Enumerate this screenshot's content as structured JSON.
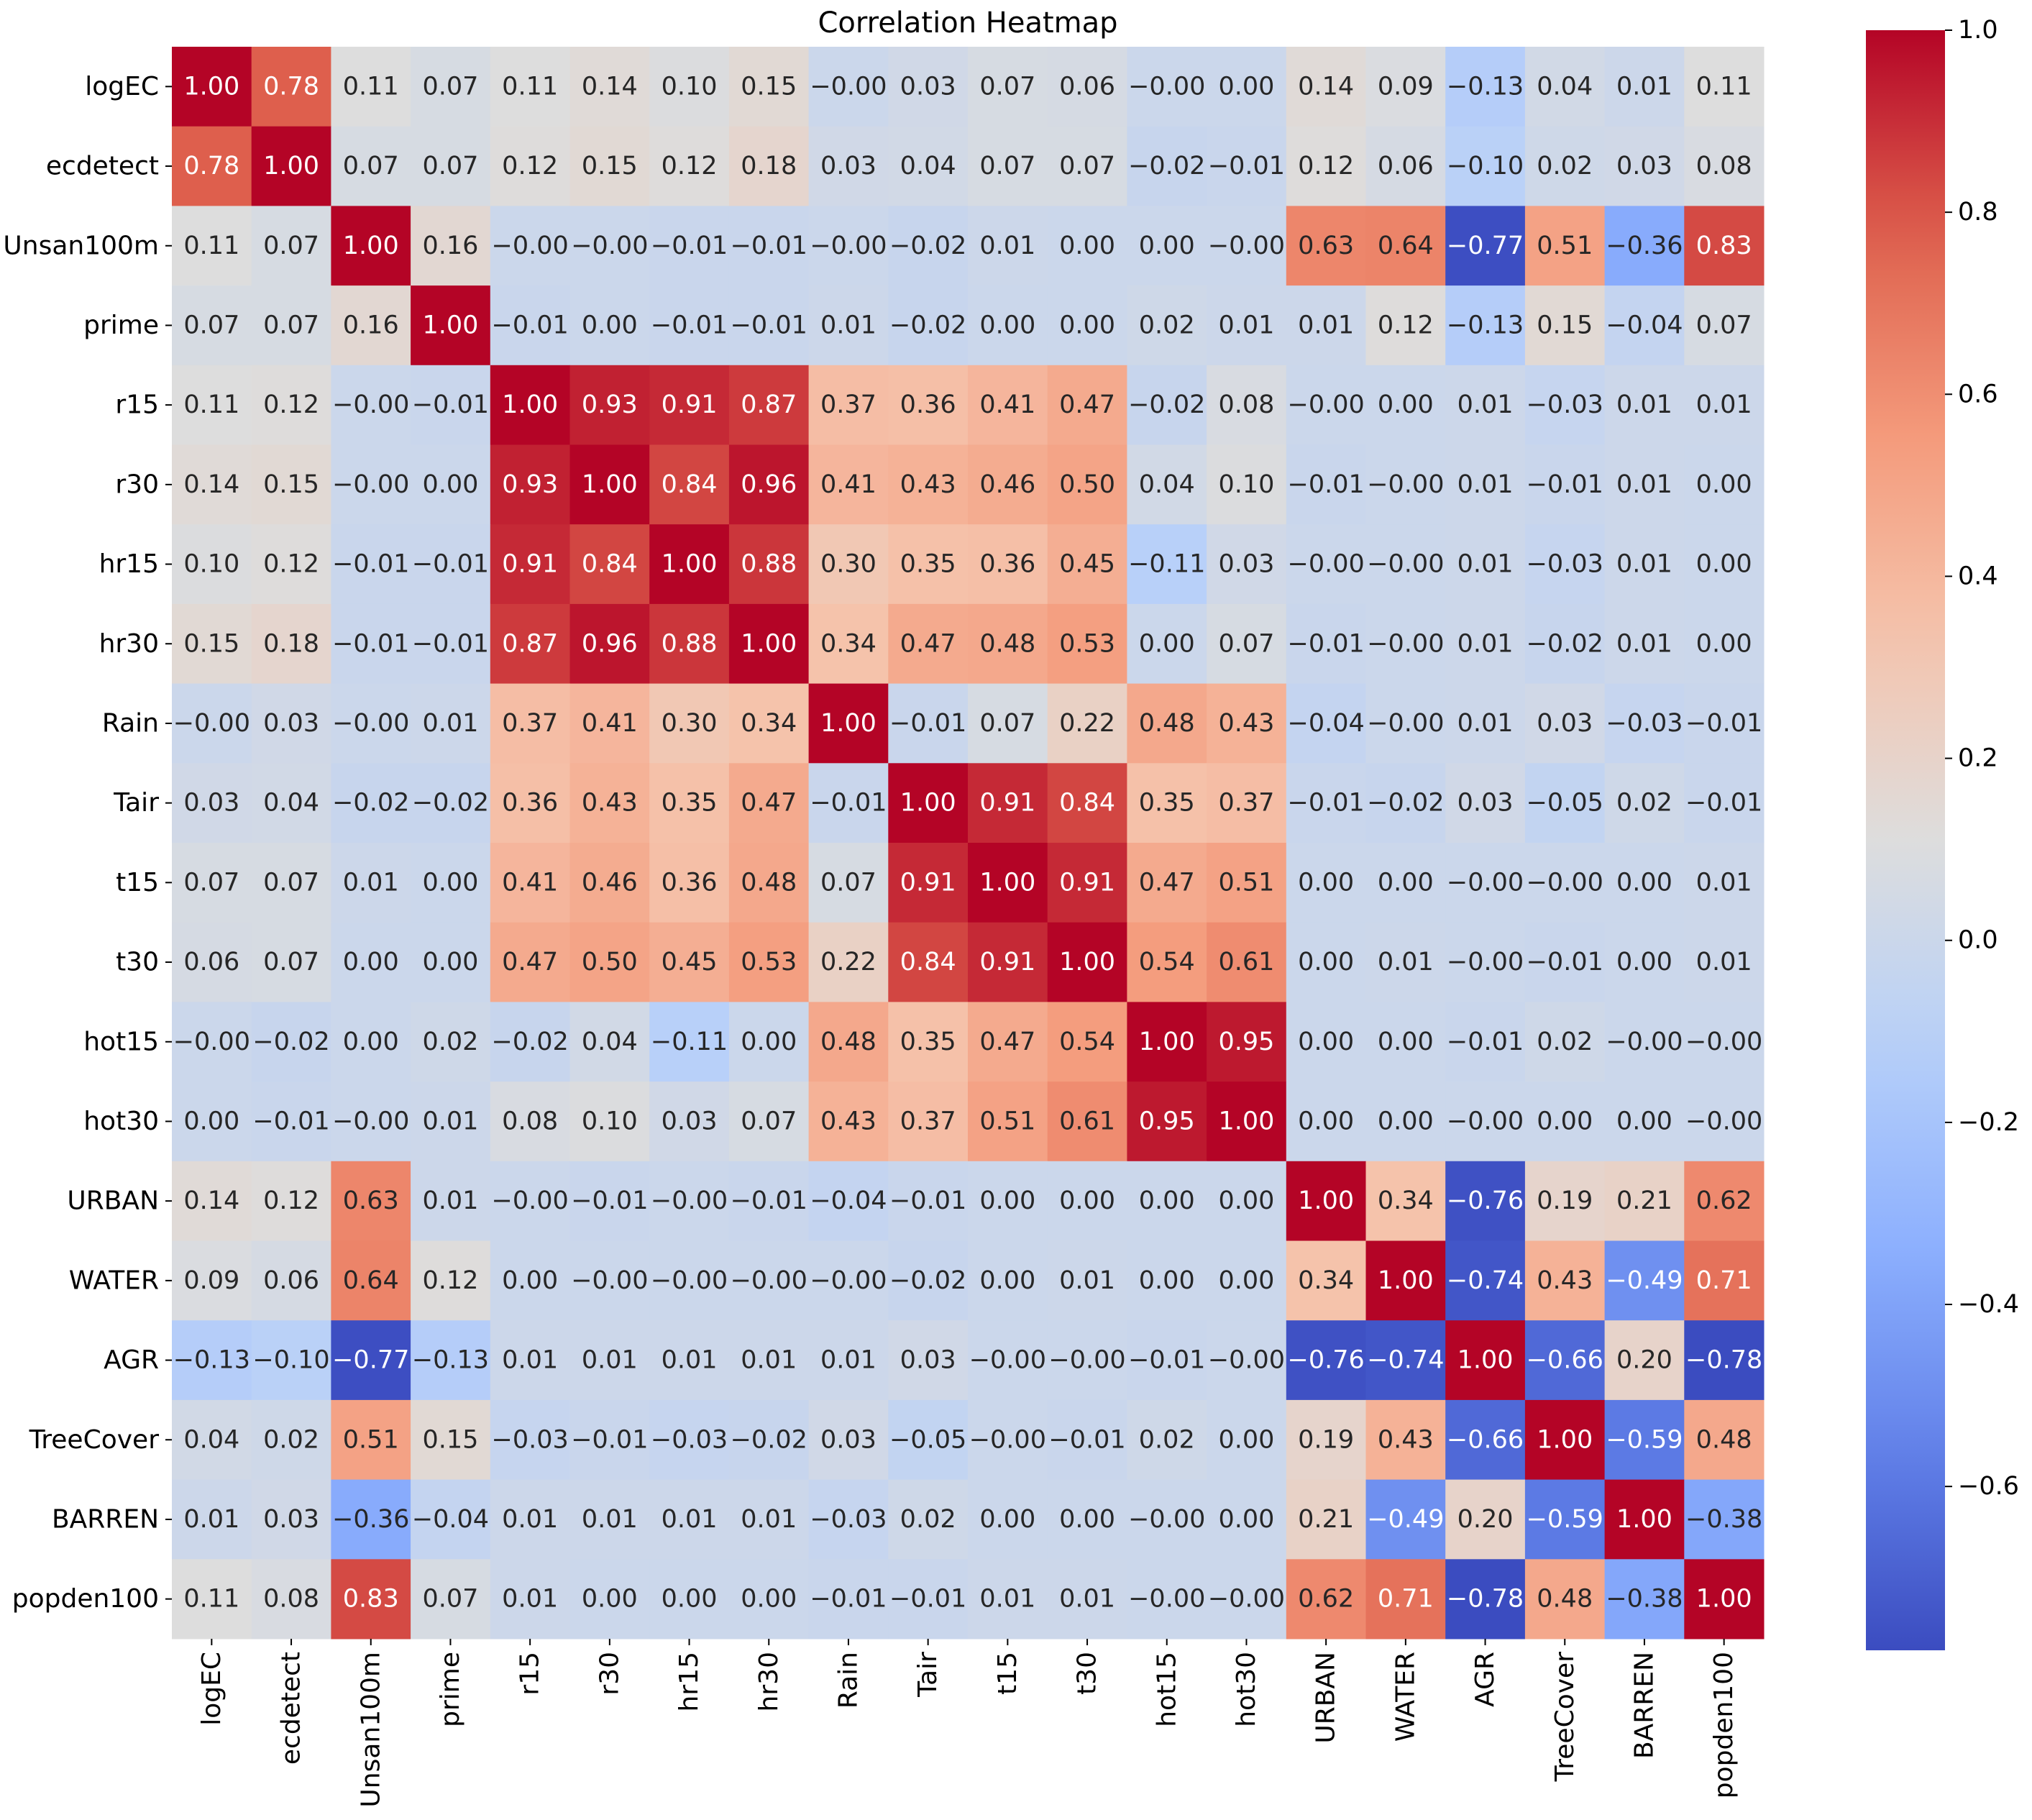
{
  "chart_data": {
    "type": "heatmap",
    "title": "Correlation Heatmap",
    "xlabel": "",
    "ylabel": "",
    "labels": [
      "logEC",
      "ecdetect",
      "Unsan100m",
      "prime",
      "r15",
      "r30",
      "hr15",
      "hr30",
      "Rain",
      "Tair",
      "t15",
      "t30",
      "hot15",
      "hot30",
      "URBAN",
      "WATER",
      "AGR",
      "TreeCover",
      "BARREN",
      "popden100"
    ],
    "matrix": [
      [
        "1.00",
        "0.78",
        "0.11",
        "0.07",
        "0.11",
        "0.14",
        "0.10",
        "0.15",
        "−0.00",
        "0.03",
        "0.07",
        "0.06",
        "−0.00",
        "0.00",
        "0.14",
        "0.09",
        "−0.13",
        "0.04",
        "0.01",
        "0.11"
      ],
      [
        "0.78",
        "1.00",
        "0.07",
        "0.07",
        "0.12",
        "0.15",
        "0.12",
        "0.18",
        "0.03",
        "0.04",
        "0.07",
        "0.07",
        "−0.02",
        "−0.01",
        "0.12",
        "0.06",
        "−0.10",
        "0.02",
        "0.03",
        "0.08"
      ],
      [
        "0.11",
        "0.07",
        "1.00",
        "0.16",
        "−0.00",
        "−0.00",
        "−0.01",
        "−0.01",
        "−0.00",
        "−0.02",
        "0.01",
        "0.00",
        "0.00",
        "−0.00",
        "0.63",
        "0.64",
        "−0.77",
        "0.51",
        "−0.36",
        "0.83"
      ],
      [
        "0.07",
        "0.07",
        "0.16",
        "1.00",
        "−0.01",
        "0.00",
        "−0.01",
        "−0.01",
        "0.01",
        "−0.02",
        "0.00",
        "0.00",
        "0.02",
        "0.01",
        "0.01",
        "0.12",
        "−0.13",
        "0.15",
        "−0.04",
        "0.07"
      ],
      [
        "0.11",
        "0.12",
        "−0.00",
        "−0.01",
        "1.00",
        "0.93",
        "0.91",
        "0.87",
        "0.37",
        "0.36",
        "0.41",
        "0.47",
        "−0.02",
        "0.08",
        "−0.00",
        "0.00",
        "0.01",
        "−0.03",
        "0.01",
        "0.01"
      ],
      [
        "0.14",
        "0.15",
        "−0.00",
        "0.00",
        "0.93",
        "1.00",
        "0.84",
        "0.96",
        "0.41",
        "0.43",
        "0.46",
        "0.50",
        "0.04",
        "0.10",
        "−0.01",
        "−0.00",
        "0.01",
        "−0.01",
        "0.01",
        "0.00"
      ],
      [
        "0.10",
        "0.12",
        "−0.01",
        "−0.01",
        "0.91",
        "0.84",
        "1.00",
        "0.88",
        "0.30",
        "0.35",
        "0.36",
        "0.45",
        "−0.11",
        "0.03",
        "−0.00",
        "−0.00",
        "0.01",
        "−0.03",
        "0.01",
        "0.00"
      ],
      [
        "0.15",
        "0.18",
        "−0.01",
        "−0.01",
        "0.87",
        "0.96",
        "0.88",
        "1.00",
        "0.34",
        "0.47",
        "0.48",
        "0.53",
        "0.00",
        "0.07",
        "−0.01",
        "−0.00",
        "0.01",
        "−0.02",
        "0.01",
        "0.00"
      ],
      [
        "−0.00",
        "0.03",
        "−0.00",
        "0.01",
        "0.37",
        "0.41",
        "0.30",
        "0.34",
        "1.00",
        "−0.01",
        "0.07",
        "0.22",
        "0.48",
        "0.43",
        "−0.04",
        "−0.00",
        "0.01",
        "0.03",
        "−0.03",
        "−0.01"
      ],
      [
        "0.03",
        "0.04",
        "−0.02",
        "−0.02",
        "0.36",
        "0.43",
        "0.35",
        "0.47",
        "−0.01",
        "1.00",
        "0.91",
        "0.84",
        "0.35",
        "0.37",
        "−0.01",
        "−0.02",
        "0.03",
        "−0.05",
        "0.02",
        "−0.01"
      ],
      [
        "0.07",
        "0.07",
        "0.01",
        "0.00",
        "0.41",
        "0.46",
        "0.36",
        "0.48",
        "0.07",
        "0.91",
        "1.00",
        "0.91",
        "0.47",
        "0.51",
        "0.00",
        "0.00",
        "−0.00",
        "−0.00",
        "0.00",
        "0.01"
      ],
      [
        "0.06",
        "0.07",
        "0.00",
        "0.00",
        "0.47",
        "0.50",
        "0.45",
        "0.53",
        "0.22",
        "0.84",
        "0.91",
        "1.00",
        "0.54",
        "0.61",
        "0.00",
        "0.01",
        "−0.00",
        "−0.01",
        "0.00",
        "0.01"
      ],
      [
        "−0.00",
        "−0.02",
        "0.00",
        "0.02",
        "−0.02",
        "0.04",
        "−0.11",
        "0.00",
        "0.48",
        "0.35",
        "0.47",
        "0.54",
        "1.00",
        "0.95",
        "0.00",
        "0.00",
        "−0.01",
        "0.02",
        "−0.00",
        "−0.00"
      ],
      [
        "0.00",
        "−0.01",
        "−0.00",
        "0.01",
        "0.08",
        "0.10",
        "0.03",
        "0.07",
        "0.43",
        "0.37",
        "0.51",
        "0.61",
        "0.95",
        "1.00",
        "0.00",
        "0.00",
        "−0.00",
        "0.00",
        "0.00",
        "−0.00"
      ],
      [
        "0.14",
        "0.12",
        "0.63",
        "0.01",
        "−0.00",
        "−0.01",
        "−0.00",
        "−0.01",
        "−0.04",
        "−0.01",
        "0.00",
        "0.00",
        "0.00",
        "0.00",
        "1.00",
        "0.34",
        "−0.76",
        "0.19",
        "0.21",
        "0.62"
      ],
      [
        "0.09",
        "0.06",
        "0.64",
        "0.12",
        "0.00",
        "−0.00",
        "−0.00",
        "−0.00",
        "−0.00",
        "−0.02",
        "0.00",
        "0.01",
        "0.00",
        "0.00",
        "0.34",
        "1.00",
        "−0.74",
        "0.43",
        "−0.49",
        "0.71"
      ],
      [
        "−0.13",
        "−0.10",
        "−0.77",
        "−0.13",
        "0.01",
        "0.01",
        "0.01",
        "0.01",
        "0.01",
        "0.03",
        "−0.00",
        "−0.00",
        "−0.01",
        "−0.00",
        "−0.76",
        "−0.74",
        "1.00",
        "−0.66",
        "0.20",
        "−0.78"
      ],
      [
        "0.04",
        "0.02",
        "0.51",
        "0.15",
        "−0.03",
        "−0.01",
        "−0.03",
        "−0.02",
        "0.03",
        "−0.05",
        "−0.00",
        "−0.01",
        "0.02",
        "0.00",
        "0.19",
        "0.43",
        "−0.66",
        "1.00",
        "−0.59",
        "0.48"
      ],
      [
        "0.01",
        "0.03",
        "−0.36",
        "−0.04",
        "0.01",
        "0.01",
        "0.01",
        "0.01",
        "−0.03",
        "0.02",
        "0.00",
        "0.00",
        "−0.00",
        "0.00",
        "0.21",
        "−0.49",
        "0.20",
        "−0.59",
        "1.00",
        "−0.38"
      ],
      [
        "0.11",
        "0.08",
        "0.83",
        "0.07",
        "0.01",
        "0.00",
        "0.00",
        "0.00",
        "−0.01",
        "−0.01",
        "0.01",
        "0.01",
        "−0.00",
        "−0.00",
        "0.62",
        "0.71",
        "−0.78",
        "0.48",
        "−0.38",
        "1.00"
      ]
    ],
    "colormap": "coolwarm",
    "vmin": -0.78,
    "vmax": 1.0,
    "colorbar_ticks": [
      1.0,
      0.8,
      0.6,
      0.4,
      0.2,
      0.0,
      -0.2,
      -0.4,
      -0.6
    ],
    "colorbar_tick_labels": [
      "1.0",
      "0.8",
      "0.6",
      "0.4",
      "0.2",
      "0.0",
      "−0.2",
      "−0.4",
      "−0.6"
    ],
    "grid": false,
    "legend": "colorbar-right"
  }
}
